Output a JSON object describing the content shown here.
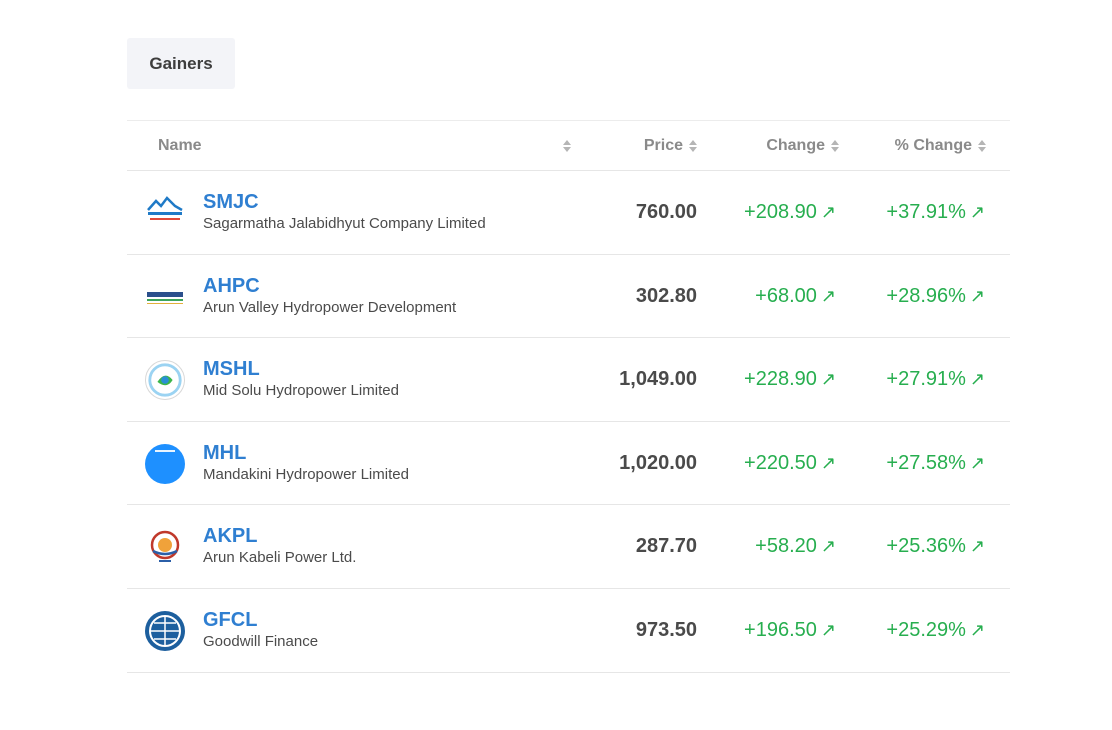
{
  "tab": {
    "label": "Gainers"
  },
  "header": {
    "name": "Name",
    "price": "Price",
    "change": "Change",
    "pct_change": "% Change"
  },
  "arrow_glyph": "↗",
  "colors": {
    "symbol": "#2f7fd1",
    "gain": "#27ae4f"
  },
  "rows": [
    {
      "symbol": "SMJC",
      "name": "Sagarmatha Jalabidhyut Company Limited",
      "price": "760.00",
      "change": "+208.90",
      "pct": "+37.91%",
      "logo": "sagarmatha-logo"
    },
    {
      "symbol": "AHPC",
      "name": "Arun Valley Hydropower Development",
      "price": "302.80",
      "change": "+68.00",
      "pct": "+28.96%",
      "logo": "arun-valley-logo"
    },
    {
      "symbol": "MSHL",
      "name": "Mid Solu Hydropower Limited",
      "price": "1,049.00",
      "change": "+228.90",
      "pct": "+27.91%",
      "logo": "mid-solu-logo"
    },
    {
      "symbol": "MHL",
      "name": "Mandakini Hydropower Limited",
      "price": "1,020.00",
      "change": "+220.50",
      "pct": "+27.58%",
      "logo": "mandakini-logo"
    },
    {
      "symbol": "AKPL",
      "name": "Arun Kabeli Power Ltd.",
      "price": "287.70",
      "change": "+58.20",
      "pct": "+25.36%",
      "logo": "arun-kabeli-logo"
    },
    {
      "symbol": "GFCL",
      "name": "Goodwill Finance",
      "price": "973.50",
      "change": "+196.50",
      "pct": "+25.29%",
      "logo": "goodwill-logo"
    }
  ]
}
